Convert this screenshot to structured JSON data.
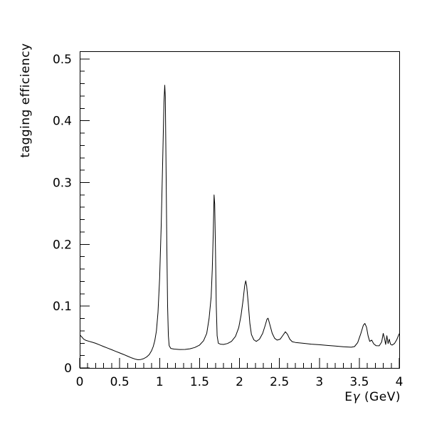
{
  "chart_data": {
    "type": "line",
    "title": "",
    "xlabel": "Eγ (GeV)",
    "xlabel_parts": {
      "prefix": "E",
      "symbol": "γ",
      "suffix": " (GeV)"
    },
    "ylabel": "tagging efficiency",
    "xlim": [
      0,
      4
    ],
    "ylim": [
      0,
      0.5125
    ],
    "grid": false,
    "legend_position": "none",
    "line_color": "#000000",
    "background_color": "#ffffff",
    "x_major_ticks": [
      0,
      0.5,
      1,
      1.5,
      2,
      2.5,
      3,
      3.5,
      4
    ],
    "x_tick_labels": [
      "0",
      "0.5",
      "1",
      "1.5",
      "2",
      "2.5",
      "3",
      "3.5",
      "4"
    ],
    "x_minor_step": 0.1,
    "y_major_ticks": [
      0,
      0.1,
      0.2,
      0.3,
      0.4,
      0.5
    ],
    "y_tick_labels": [
      "0",
      "0.1",
      "0.2",
      "0.3",
      "0.4",
      "0.5"
    ],
    "y_minor_step": 0.02,
    "series": [
      {
        "name": "tagging efficiency",
        "points": [
          [
            0.0,
            0.053
          ],
          [
            0.01,
            0.0525
          ],
          [
            0.03,
            0.0495
          ],
          [
            0.05,
            0.0465
          ],
          [
            0.08,
            0.0445
          ],
          [
            0.12,
            0.043
          ],
          [
            0.16,
            0.0415
          ],
          [
            0.2,
            0.0398
          ],
          [
            0.25,
            0.0372
          ],
          [
            0.3,
            0.0345
          ],
          [
            0.35,
            0.032
          ],
          [
            0.4,
            0.0295
          ],
          [
            0.45,
            0.0268
          ],
          [
            0.5,
            0.0243
          ],
          [
            0.55,
            0.0218
          ],
          [
            0.6,
            0.019
          ],
          [
            0.65,
            0.0162
          ],
          [
            0.7,
            0.014
          ],
          [
            0.73,
            0.0133
          ],
          [
            0.76,
            0.0135
          ],
          [
            0.8,
            0.015
          ],
          [
            0.84,
            0.018
          ],
          [
            0.87,
            0.0215
          ],
          [
            0.9,
            0.028
          ],
          [
            0.92,
            0.0345
          ],
          [
            0.94,
            0.044
          ],
          [
            0.96,
            0.06
          ],
          [
            0.98,
            0.09
          ],
          [
            1.0,
            0.145
          ],
          [
            1.02,
            0.23
          ],
          [
            1.04,
            0.34
          ],
          [
            1.055,
            0.43
          ],
          [
            1.065,
            0.4575
          ],
          [
            1.072,
            0.438
          ],
          [
            1.08,
            0.34
          ],
          [
            1.09,
            0.2
          ],
          [
            1.1,
            0.1
          ],
          [
            1.11,
            0.052
          ],
          [
            1.12,
            0.036
          ],
          [
            1.14,
            0.0315
          ],
          [
            1.18,
            0.0305
          ],
          [
            1.25,
            0.0298
          ],
          [
            1.32,
            0.03
          ],
          [
            1.38,
            0.031
          ],
          [
            1.44,
            0.033
          ],
          [
            1.5,
            0.037
          ],
          [
            1.55,
            0.044
          ],
          [
            1.59,
            0.056
          ],
          [
            1.62,
            0.08
          ],
          [
            1.645,
            0.115
          ],
          [
            1.66,
            0.16
          ],
          [
            1.672,
            0.22
          ],
          [
            1.682,
            0.28
          ],
          [
            1.69,
            0.265
          ],
          [
            1.7,
            0.19
          ],
          [
            1.71,
            0.1
          ],
          [
            1.72,
            0.052
          ],
          [
            1.735,
            0.04
          ],
          [
            1.76,
            0.0385
          ],
          [
            1.8,
            0.038
          ],
          [
            1.85,
            0.0395
          ],
          [
            1.9,
            0.043
          ],
          [
            1.95,
            0.051
          ],
          [
            1.99,
            0.065
          ],
          [
            2.02,
            0.085
          ],
          [
            2.045,
            0.11
          ],
          [
            2.065,
            0.133
          ],
          [
            2.078,
            0.141
          ],
          [
            2.09,
            0.133
          ],
          [
            2.11,
            0.105
          ],
          [
            2.13,
            0.072
          ],
          [
            2.15,
            0.054
          ],
          [
            2.18,
            0.0455
          ],
          [
            2.21,
            0.043
          ],
          [
            2.25,
            0.0465
          ],
          [
            2.29,
            0.056
          ],
          [
            2.32,
            0.068
          ],
          [
            2.345,
            0.079
          ],
          [
            2.358,
            0.0805
          ],
          [
            2.38,
            0.07
          ],
          [
            2.41,
            0.056
          ],
          [
            2.44,
            0.048
          ],
          [
            2.47,
            0.045
          ],
          [
            2.51,
            0.0465
          ],
          [
            2.545,
            0.053
          ],
          [
            2.575,
            0.0585
          ],
          [
            2.6,
            0.0545
          ],
          [
            2.63,
            0.0465
          ],
          [
            2.66,
            0.0425
          ],
          [
            2.7,
            0.0412
          ],
          [
            2.8,
            0.0398
          ],
          [
            2.9,
            0.0385
          ],
          [
            3.0,
            0.0375
          ],
          [
            3.1,
            0.0364
          ],
          [
            3.2,
            0.0353
          ],
          [
            3.3,
            0.0343
          ],
          [
            3.4,
            0.0335
          ],
          [
            3.44,
            0.0345
          ],
          [
            3.48,
            0.041
          ],
          [
            3.52,
            0.056
          ],
          [
            3.55,
            0.069
          ],
          [
            3.57,
            0.072
          ],
          [
            3.59,
            0.066
          ],
          [
            3.61,
            0.052
          ],
          [
            3.63,
            0.043
          ],
          [
            3.655,
            0.045
          ],
          [
            3.68,
            0.039
          ],
          [
            3.71,
            0.036
          ],
          [
            3.75,
            0.0358
          ],
          [
            3.78,
            0.042
          ],
          [
            3.8,
            0.0558
          ],
          [
            3.815,
            0.048
          ],
          [
            3.83,
            0.038
          ],
          [
            3.845,
            0.052
          ],
          [
            3.86,
            0.0395
          ],
          [
            3.875,
            0.0465
          ],
          [
            3.89,
            0.0385
          ],
          [
            3.91,
            0.037
          ],
          [
            3.94,
            0.0395
          ],
          [
            3.97,
            0.046
          ],
          [
            4.0,
            0.0555
          ]
        ]
      }
    ]
  }
}
